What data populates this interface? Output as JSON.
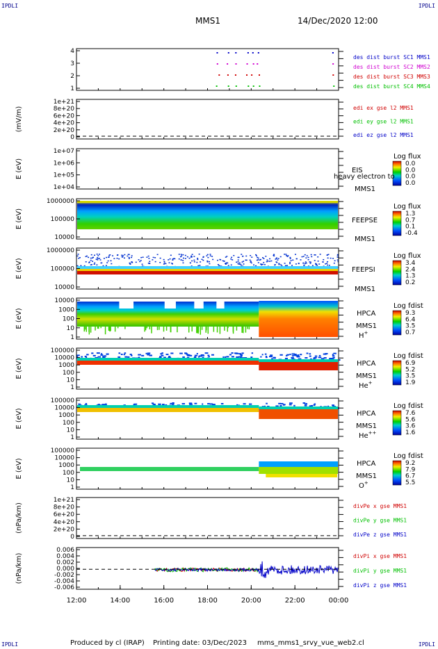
{
  "header": {
    "corner_label": "IPDLI",
    "spacecraft": "MMS1",
    "date_time": "14/Dec/2020 12:00"
  },
  "footer": {
    "produced_by": "Produced by cl (IRAP)",
    "printing_date": "Printing date: 03/Dec/2023",
    "file_name": "mms_mms1_srvy_vue_web2.cl"
  },
  "x_ticks": [
    "12:00",
    "14:00",
    "16:00",
    "18:00",
    "20:00",
    "22:00",
    "00:00"
  ],
  "chart_data": [
    {
      "type": "scatter",
      "id": "burst",
      "ylabel": "",
      "yticks": [
        "4",
        "3",
        "2",
        "1"
      ],
      "legend": [
        {
          "text": "des dist burst SC1 MMS1",
          "color": "#0000c8"
        },
        {
          "text": "des dist burst SC2 MMS2",
          "color": "#d000d0"
        },
        {
          "text": "des dist burst SC3 MMS3",
          "color": "#d00000"
        },
        {
          "text": "des dist burst SC4 MMS4",
          "color": "#00c000"
        }
      ],
      "burst_times_hours": [
        18.45,
        18.9,
        19.25,
        19.8,
        20.05,
        20.3,
        23.7
      ]
    },
    {
      "type": "line",
      "id": "edi",
      "ylabel": "(mV/m)",
      "yticks": [
        "1e+21",
        "8e+20",
        "6e+20",
        "4e+20",
        "2e+20",
        "0"
      ],
      "legend": [
        {
          "text": "edi ex gse l2 MMS1",
          "color": "#d00000"
        },
        {
          "text": "edi ey gse l2 MMS1",
          "color": "#00c000"
        },
        {
          "text": "edi ez gse l2 MMS1",
          "color": "#0000c8"
        }
      ]
    },
    {
      "type": "heatmap",
      "id": "eis",
      "ylabel": "E (eV)",
      "yticks": [
        "1e+07",
        "1e+06",
        "1e+05",
        "1e+04"
      ],
      "side_labels": [
        "EIS",
        "MMS1"
      ],
      "overlay_text": "heavy electron to",
      "cbar_title": "Log flux",
      "cbar_ticks": [
        "0.0",
        "0.0",
        "0.0",
        "0.0"
      ]
    },
    {
      "type": "heatmap",
      "id": "feepse",
      "ylabel": "E (eV)",
      "yticks": [
        "1000000",
        "100000",
        "10000"
      ],
      "side_labels": [
        "FEEPSE",
        "MMS1"
      ],
      "cbar_title": "Log flux",
      "cbar_ticks": [
        "1.3",
        "0.7",
        "0.1",
        "-0.4"
      ]
    },
    {
      "type": "heatmap",
      "id": "feepsi",
      "ylabel": "E (eV)",
      "yticks": [
        "1000000",
        "100000",
        "10000"
      ],
      "side_labels": [
        "FEEPSI",
        "MMS1"
      ],
      "cbar_title": "Log flux",
      "cbar_ticks": [
        "3.4",
        "2.4",
        "1.3",
        "0.2"
      ]
    },
    {
      "type": "heatmap",
      "id": "hpca_h",
      "ylabel": "E (eV)",
      "yticks": [
        "10000",
        "1000",
        "100",
        "10",
        "1"
      ],
      "side_labels": [
        "HPCA",
        "MMS1"
      ],
      "species": "H",
      "species_sup": "+",
      "cbar_title": "Log fdist",
      "cbar_ticks": [
        "9.3",
        "6.4",
        "3.5",
        "0.7"
      ]
    },
    {
      "type": "heatmap",
      "id": "hpca_he",
      "ylabel": "E (eV)",
      "yticks": [
        "100000",
        "10000",
        "1000",
        "100",
        "10",
        "1"
      ],
      "side_labels": [
        "HPCA",
        "MMS1"
      ],
      "species": "He",
      "species_sup": "+",
      "cbar_title": "Log fdist",
      "cbar_ticks": [
        "6.9",
        "5.2",
        "3.5",
        "1.9"
      ]
    },
    {
      "type": "heatmap",
      "id": "hpca_hepp",
      "ylabel": "E (eV)",
      "yticks": [
        "100000",
        "10000",
        "1000",
        "100",
        "10",
        "1"
      ],
      "side_labels": [
        "HPCA",
        "MMS1"
      ],
      "species": "He",
      "species_sup": "++",
      "cbar_title": "Log fdist",
      "cbar_ticks": [
        "7.6",
        "5.6",
        "3.6",
        "1.6"
      ]
    },
    {
      "type": "heatmap",
      "id": "hpca_o",
      "ylabel": "E (eV)",
      "yticks": [
        "100000",
        "10000",
        "1000",
        "100",
        "10",
        "1"
      ],
      "side_labels": [
        "HPCA",
        "MMS1"
      ],
      "species": "O",
      "species_sup": "+",
      "cbar_title": "Log fdist",
      "cbar_ticks": [
        "9.2",
        "7.9",
        "6.7",
        "5.5"
      ]
    },
    {
      "type": "line",
      "id": "divpe",
      "ylabel": "(nPa/km)",
      "yticks": [
        "1e+21",
        "8e+20",
        "6e+20",
        "4e+20",
        "2e+20",
        "0"
      ],
      "legend": [
        {
          "text": "divPe x gse MMS1",
          "color": "#d00000"
        },
        {
          "text": "divPe y gse MMS1",
          "color": "#00c000"
        },
        {
          "text": "divPe z gse MMS1",
          "color": "#0000c8"
        }
      ]
    },
    {
      "type": "line",
      "id": "divpi",
      "ylabel": "(nPa/km)",
      "yticks": [
        "0.006",
        "0.004",
        "0.002",
        "0.000",
        "-0.002",
        "-0.004",
        "-0.006"
      ],
      "legend": [
        {
          "text": "divPi x gse MMS1",
          "color": "#d00000"
        },
        {
          "text": "divPi y gse MMS1",
          "color": "#00c000"
        },
        {
          "text": "divPi z gse MMS1",
          "color": "#0000c8"
        }
      ],
      "data_start_hour": 15.6,
      "burst_start_hour": 20.35
    }
  ]
}
